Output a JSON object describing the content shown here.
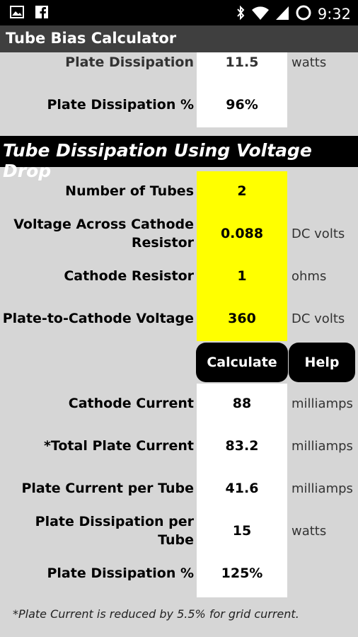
{
  "status_bar": {
    "time": "9:32",
    "icons": [
      "image-icon",
      "facebook-icon",
      "bluetooth-icon",
      "wifi-icon",
      "signal-icon",
      "battery-icon"
    ]
  },
  "app": {
    "title": "Tube Bias Calculator"
  },
  "top_partial": {
    "plate_dissipation": {
      "label": "Plate Dissipation",
      "value": "11.5",
      "unit": "watts"
    },
    "plate_dissipation_pct": {
      "label": "Plate Dissipation %",
      "value": "96%",
      "unit": ""
    }
  },
  "section": {
    "title": "Tube Dissipation Using Voltage Drop",
    "inputs": [
      {
        "label": "Number of Tubes",
        "value": "2",
        "unit": ""
      },
      {
        "label": "Voltage Across Cathode Resistor",
        "value": "0.088",
        "unit": "DC volts"
      },
      {
        "label": "Cathode Resistor",
        "value": "1",
        "unit": "ohms"
      },
      {
        "label": "Plate-to-Cathode Voltage",
        "value": "360",
        "unit": "DC volts"
      }
    ],
    "buttons": {
      "calculate": "Calculate",
      "help": "Help"
    },
    "results": [
      {
        "label": "Cathode Current",
        "value": "88",
        "unit": "milliamps"
      },
      {
        "label": "*Total Plate Current",
        "value": "83.2",
        "unit": "milliamps"
      },
      {
        "label": "Plate Current per Tube",
        "value": "41.6",
        "unit": "milliamps"
      },
      {
        "label": "Plate Dissipation per Tube",
        "value": "15",
        "unit": "watts"
      },
      {
        "label": "Plate Dissipation %",
        "value": "125%",
        "unit": ""
      }
    ],
    "note": "*Plate Current is reduced by 5.5% for grid current."
  },
  "colors": {
    "input_bg": "#ffff00",
    "result_bg": "#ffffff",
    "header_bg": "#000000",
    "app_bg": "#d6d6d6"
  }
}
